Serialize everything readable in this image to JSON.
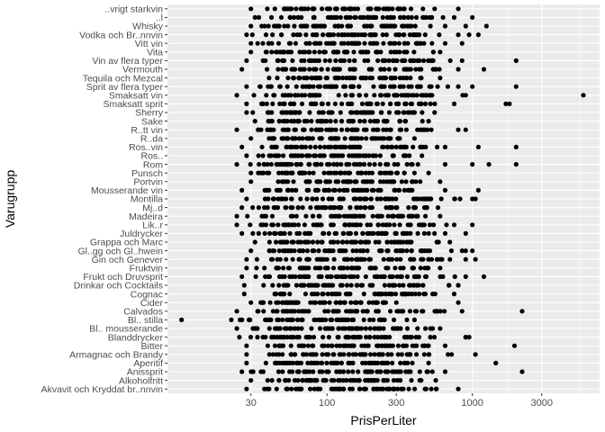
{
  "chart_data": {
    "type": "scatter",
    "title": "",
    "xlabel": "PrisPerLiter",
    "ylabel": "Varugrupp",
    "x_scale": "log10",
    "xlim": [
      8,
      7500
    ],
    "x_ticks": [
      {
        "value": 30,
        "label": "30"
      },
      {
        "value": 100,
        "label": "100"
      },
      {
        "value": 300,
        "label": "300"
      },
      {
        "value": 1000,
        "label": "1000"
      },
      {
        "value": 3000,
        "label": "3000"
      }
    ],
    "grid": true,
    "legend": "none",
    "colors": {
      "panel": "#ebebeb",
      "grid_major": "#ffffff",
      "point": "#000000",
      "tick_text": "#4d4d4d"
    },
    "categories": [
      "Akvavit och Kryddat br..nnvin",
      "Alkoholfritt",
      "Anissprit",
      "Aperitif",
      "Armagnac och Brandy",
      "Bitter",
      "Blanddrycker",
      "Bl.. mousserande",
      "Bl.. stilla",
      "Calvados",
      "Cider",
      "Cognac",
      "Drinkar och Cocktails",
      "Frukt och Druvsprit",
      "Fruktvin",
      "Gin och Genever",
      "Gl..gg och Gl..hwein",
      "Grappa och Marc",
      "Juldrycker",
      "Lik..r",
      "Madeira",
      "Mj..d",
      "Montilla",
      "Mousserande vin",
      "Portvin",
      "Punsch",
      "Rom",
      "Ros..",
      "Ros..vin",
      "R..da",
      "R..tt vin",
      "Sake",
      "Sherry",
      "Smaksatt sprit",
      "Smaksatt vin",
      "Sprit av flera typer",
      "Tequila och Mezcal",
      "Vermouth",
      "Vin av flera typer",
      "Vita",
      "Vitt vin",
      "Vodka och Br..nnvin",
      "Whisky",
      "..l",
      "..vrigt starkvin"
    ],
    "series": [
      {
        "ranges": [
          [
            28,
            800
          ],
          [
            30,
            560
          ],
          [
            26,
            650
          ],
          [
            28,
            500
          ],
          [
            28,
            720
          ],
          [
            28,
            650
          ],
          [
            25,
            900
          ],
          [
            24,
            600
          ],
          [
            22,
            400
          ],
          [
            24,
            850
          ],
          [
            30,
            300
          ],
          [
            27,
            750
          ],
          [
            27,
            800
          ],
          [
            26,
            900
          ],
          [
            28,
            600
          ],
          [
            28,
            900
          ],
          [
            30,
            850
          ],
          [
            32,
            700
          ],
          [
            26,
            650
          ],
          [
            24,
            750
          ],
          [
            24,
            600
          ],
          [
            26,
            580
          ],
          [
            28,
            1000
          ],
          [
            26,
            650
          ],
          [
            30,
            600
          ],
          [
            30,
            500
          ],
          [
            24,
            650
          ],
          [
            28,
            450
          ],
          [
            26,
            650
          ],
          [
            30,
            400
          ],
          [
            24,
            800
          ],
          [
            32,
            500
          ],
          [
            28,
            550
          ],
          [
            28,
            750
          ],
          [
            24,
            900
          ],
          [
            28,
            800
          ],
          [
            40,
            600
          ],
          [
            26,
            800
          ],
          [
            28,
            850
          ],
          [
            30,
            600
          ],
          [
            30,
            650
          ],
          [
            28,
            800
          ],
          [
            30,
            650
          ],
          [
            32,
            750
          ],
          [
            30,
            550
          ]
        ],
        "outliers": [
          [],
          [],
          [
            2200
          ],
          [
            1450
          ],
          [
            1050
          ],
          [
            1950
          ],
          [
            900,
            950
          ],
          [],
          [
            10
          ],
          [
            2200
          ],
          [
            800
          ],
          [],
          [
            800
          ],
          [
            1200
          ],
          [],
          [
            1050
          ],
          [
            900,
            1000
          ],
          [],
          [
            900
          ],
          [
            1000
          ],
          [],
          [],
          [
            1050
          ],
          [
            1100
          ],
          [],
          [],
          [
            1300,
            2000,
            1000
          ],
          [],
          [
            2000,
            1100
          ],
          [],
          [
            900
          ],
          [],
          [],
          [
            1700,
            1800
          ],
          [
            5800
          ],
          [
            1000,
            2000
          ],
          [],
          [
            1200
          ],
          [
            2000
          ],
          [],
          [
            850
          ],
          [
            950,
            1100
          ],
          [
            1250,
            900
          ],
          [
            1000
          ],
          [
            800
          ]
        ]
      }
    ]
  }
}
